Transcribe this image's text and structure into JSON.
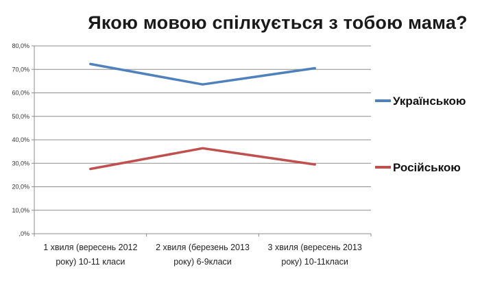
{
  "chart_data": {
    "type": "line",
    "title": "Якою мовою спілкується з тобою мама?",
    "categories": [
      [
        "1 хвиля (вересень 2012",
        "року) 10-11 класи"
      ],
      [
        "2 хвиля (березень 2013",
        "року) 6-9класи"
      ],
      [
        "3 хвиля (вересень 2013",
        "року) 10-11класи"
      ]
    ],
    "y_ticks": [
      ",0%",
      "10,0%",
      "20,0%",
      "30,0%",
      "40,0%",
      "50,0%",
      "60,0%",
      "70,0%",
      "80,0%"
    ],
    "ylim": [
      0,
      80
    ],
    "grid": true,
    "legend_position": "right",
    "series": [
      {
        "name": "Українською",
        "color": "#4F81BD",
        "values": [
          72.3,
          63.6,
          70.5
        ]
      },
      {
        "name": "Російською",
        "color": "#C0504D",
        "values": [
          27.6,
          36.4,
          29.5
        ]
      }
    ]
  }
}
